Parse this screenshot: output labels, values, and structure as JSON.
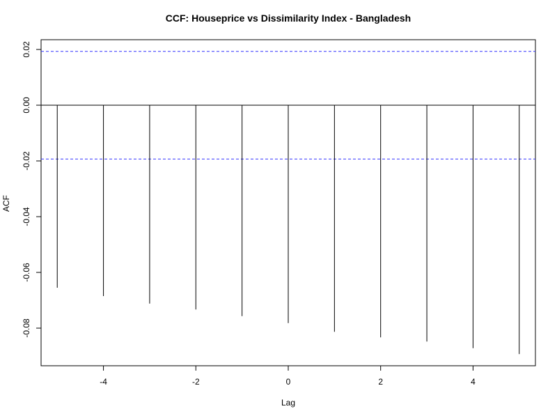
{
  "chart_data": {
    "type": "bar",
    "title": "CCF: Houseprice vs Dissimilarity Index - Bangladesh",
    "xlabel": "Lag",
    "ylabel": "ACF",
    "xlim": [
      -5.35,
      5.35
    ],
    "ylim": [
      -0.0935,
      0.0235
    ],
    "x_ticks": [
      -4,
      -2,
      0,
      2,
      4
    ],
    "x_tick_labels": [
      "-4",
      "-2",
      "0",
      "2",
      "4"
    ],
    "y_ticks": [
      -0.08,
      -0.06,
      -0.04,
      -0.02,
      0.0,
      0.02
    ],
    "y_tick_labels": [
      "-0.08",
      "-0.06",
      "-0.04",
      "-0.02",
      "0.00",
      "0.02"
    ],
    "lags": [
      -5,
      -4,
      -3,
      -2,
      -1,
      0,
      1,
      2,
      3,
      4,
      5
    ],
    "values": [
      -0.0655,
      -0.0685,
      -0.0712,
      -0.0733,
      -0.0757,
      -0.0782,
      -0.0813,
      -0.0833,
      -0.0848,
      -0.0872,
      -0.0893
    ],
    "confidence_bound": 0.0193,
    "confidence_color": "#3333ff",
    "bar_color": "#000000",
    "grid": false
  }
}
